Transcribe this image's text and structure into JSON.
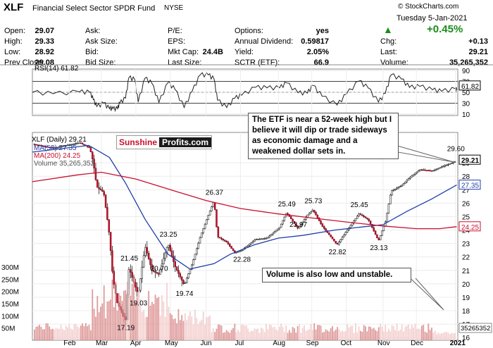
{
  "header": {
    "symbol": "XLF",
    "name": "Financial Select Sector SPDR Fund",
    "exchange": "NYSE",
    "copyright": "© StockCharts.com",
    "date": "Tuesday  5-Jan-2021",
    "change_pct": "+0.45%",
    "change_arrow": "▲",
    "accent_color": "#1a8c1a",
    "col1": [
      {
        "label": "Open:",
        "value": "29.07"
      },
      {
        "label": "High:",
        "value": "29.33"
      },
      {
        "label": "Low:",
        "value": "28.92"
      },
      {
        "label": "Prev Close:",
        "value": "29.08"
      }
    ],
    "col2": [
      {
        "label": "Ask:",
        "value": ""
      },
      {
        "label": "Ask Size:",
        "value": ""
      },
      {
        "label": "Bid:",
        "value": ""
      },
      {
        "label": "Bid Size:",
        "value": ""
      }
    ],
    "col3": [
      {
        "label": "P/E:",
        "value": ""
      },
      {
        "label": "EPS:",
        "value": ""
      },
      {
        "label": "Mkt Cap:",
        "value": "24.4B"
      },
      {
        "label": "Last Size:",
        "value": ""
      }
    ],
    "col4": [
      {
        "label": "Options:",
        "value": "yes"
      },
      {
        "label": "Annual Dividend:",
        "value": "0.59817"
      },
      {
        "label": "Yield:",
        "value": "2.05%"
      },
      {
        "label": "SCTR (ETF):",
        "value": "66.9"
      }
    ],
    "col5": [
      {
        "label": "Chg:",
        "value": "+0.13"
      },
      {
        "label": "Last:",
        "value": "29.21"
      },
      {
        "label": "Volume:",
        "value": "35,265,352"
      }
    ]
  },
  "rsi": {
    "label": "RSI(14) 61.82",
    "last_value_label": "61.82",
    "ticks": [
      "90",
      "70",
      "50",
      "30",
      "10"
    ]
  },
  "price_legend": {
    "main": "XLF (Daily) 29.21",
    "ma50": "MA(50) 27.35",
    "ma200": "MA(200) 24.25",
    "volume": "Volume 35,265,352"
  },
  "logo": {
    "part1": "Sunshine",
    "part2": "Profits.com"
  },
  "annotations": {
    "top": "The ETF is near a 52-week high but I believe it will dip or trade sideways as economic damage and a weakened dollar sets in.",
    "volume": "Volume is also low and unstable."
  },
  "chart_data": {
    "type": "candlestick",
    "x_months": [
      "Feb",
      "Mar",
      "Apr",
      "May",
      "Jun",
      "Jul",
      "Aug",
      "Sep",
      "Oct",
      "Nov",
      "Dec",
      "2021"
    ],
    "y_ticks": [
      "29",
      "28",
      "27",
      "26",
      "25",
      "24",
      "23",
      "22",
      "21",
      "20",
      "19",
      "18",
      "17",
      "16"
    ],
    "ylim": [
      15.8,
      31
    ],
    "volume_ticks": [
      "300M",
      "250M",
      "200M",
      "150M",
      "100M",
      "50M"
    ],
    "price_labels": [
      {
        "text": "17.19",
        "x": "2020-03-23",
        "y": 17.19
      },
      {
        "text": "19.03",
        "x": "2020-04-03",
        "y": 19.03
      },
      {
        "text": "21.45",
        "x": "2020-03-26",
        "y": 21.45
      },
      {
        "text": "20.70",
        "x": "2020-04-21",
        "y": 20.7
      },
      {
        "text": "23.25",
        "x": "2020-04-29",
        "y": 23.25
      },
      {
        "text": "19.74",
        "x": "2020-05-13",
        "y": 19.74
      },
      {
        "text": "26.37",
        "x": "2020-06-08",
        "y": 26.37
      },
      {
        "text": "22.28",
        "x": "2020-07-02",
        "y": 22.28
      },
      {
        "text": "25.49",
        "x": "2020-08-10",
        "y": 25.49
      },
      {
        "text": "23.97",
        "x": "2020-08-20",
        "y": 23.97
      },
      {
        "text": "25.73",
        "x": "2020-09-02",
        "y": 25.73
      },
      {
        "text": "22.82",
        "x": "2020-09-23",
        "y": 22.82
      },
      {
        "text": "25.45",
        "x": "2020-10-12",
        "y": 25.45
      },
      {
        "text": "23.13",
        "x": "2020-10-29",
        "y": 23.13
      },
      {
        "text": "29.60",
        "x": "2021-01-04",
        "y": 29.6
      }
    ],
    "last_labels": [
      {
        "text": "29.21",
        "y": 29.21,
        "color": "#000000"
      },
      {
        "text": "27.35",
        "y": 27.35,
        "color": "#1f3fa8"
      },
      {
        "text": "24.25",
        "y": 24.25,
        "color": "#c8102e"
      }
    ],
    "volume_last": "35265352",
    "close_path": [
      [
        "2020-01-02",
        30.4
      ],
      [
        "2020-01-20",
        30.1
      ],
      [
        "2020-02-12",
        30.5
      ],
      [
        "2020-02-21",
        30.1
      ],
      [
        "2020-02-24",
        29.0
      ],
      [
        "2020-02-27",
        27.2
      ],
      [
        "2020-03-04",
        26.8
      ],
      [
        "2020-03-09",
        23.6
      ],
      [
        "2020-03-12",
        20.4
      ],
      [
        "2020-03-16",
        18.5
      ],
      [
        "2020-03-18",
        18.2
      ],
      [
        "2020-03-23",
        17.3
      ],
      [
        "2020-03-26",
        21.2
      ],
      [
        "2020-03-31",
        19.9
      ],
      [
        "2020-04-03",
        19.2
      ],
      [
        "2020-04-09",
        22.8
      ],
      [
        "2020-04-15",
        21.0
      ],
      [
        "2020-04-21",
        20.7
      ],
      [
        "2020-04-29",
        23.0
      ],
      [
        "2020-05-05",
        21.3
      ],
      [
        "2020-05-13",
        19.9
      ],
      [
        "2020-05-20",
        21.5
      ],
      [
        "2020-05-27",
        23.5
      ],
      [
        "2020-06-03",
        25.1
      ],
      [
        "2020-06-08",
        26.2
      ],
      [
        "2020-06-11",
        23.5
      ],
      [
        "2020-06-19",
        23.1
      ],
      [
        "2020-06-26",
        22.3
      ],
      [
        "2020-07-02",
        22.5
      ],
      [
        "2020-07-14",
        23.3
      ],
      [
        "2020-07-24",
        23.4
      ],
      [
        "2020-08-04",
        24.2
      ],
      [
        "2020-08-10",
        25.3
      ],
      [
        "2020-08-20",
        24.1
      ],
      [
        "2020-08-28",
        25.1
      ],
      [
        "2020-09-02",
        25.5
      ],
      [
        "2020-09-10",
        24.3
      ],
      [
        "2020-09-23",
        22.9
      ],
      [
        "2020-10-01",
        23.9
      ],
      [
        "2020-10-12",
        25.2
      ],
      [
        "2020-10-20",
        24.8
      ],
      [
        "2020-10-29",
        23.2
      ],
      [
        "2020-11-04",
        24.6
      ],
      [
        "2020-11-09",
        26.9
      ],
      [
        "2020-11-18",
        27.3
      ],
      [
        "2020-11-25",
        27.9
      ],
      [
        "2020-12-04",
        28.5
      ],
      [
        "2020-12-15",
        28.4
      ],
      [
        "2020-12-23",
        28.7
      ],
      [
        "2021-01-04",
        29.1
      ],
      [
        "2021-01-05",
        29.21
      ]
    ],
    "series": [
      {
        "name": "MA(50) 27.35",
        "color": "#1f3fa8",
        "points": [
          [
            "2020-01-02",
            29.8
          ],
          [
            "2020-02-20",
            30.3
          ],
          [
            "2020-03-09",
            29.4
          ],
          [
            "2020-03-23",
            27.5
          ],
          [
            "2020-04-09",
            24.8
          ],
          [
            "2020-04-29",
            22.2
          ],
          [
            "2020-05-18",
            21.1
          ],
          [
            "2020-06-08",
            21.5
          ],
          [
            "2020-06-22",
            22.2
          ],
          [
            "2020-07-13",
            22.9
          ],
          [
            "2020-08-03",
            23.4
          ],
          [
            "2020-08-24",
            23.6
          ],
          [
            "2020-09-21",
            24.0
          ],
          [
            "2020-10-12",
            24.2
          ],
          [
            "2020-11-02",
            24.4
          ],
          [
            "2020-11-23",
            25.4
          ],
          [
            "2020-12-14",
            26.3
          ],
          [
            "2021-01-05",
            27.35
          ]
        ]
      },
      {
        "name": "MA(200) 24.25",
        "color": "#c8102e",
        "points": [
          [
            "2020-01-02",
            27.6
          ],
          [
            "2020-02-10",
            28.1
          ],
          [
            "2020-03-02",
            28.3
          ],
          [
            "2020-04-01",
            27.8
          ],
          [
            "2020-05-01",
            27.0
          ],
          [
            "2020-06-01",
            26.2
          ],
          [
            "2020-07-01",
            25.6
          ],
          [
            "2020-08-03",
            25.2
          ],
          [
            "2020-09-01",
            24.9
          ],
          [
            "2020-10-01",
            24.6
          ],
          [
            "2020-11-02",
            24.3
          ],
          [
            "2020-12-01",
            24.1
          ],
          [
            "2020-12-21",
            24.1
          ],
          [
            "2021-01-05",
            24.25
          ]
        ]
      }
    ]
  }
}
